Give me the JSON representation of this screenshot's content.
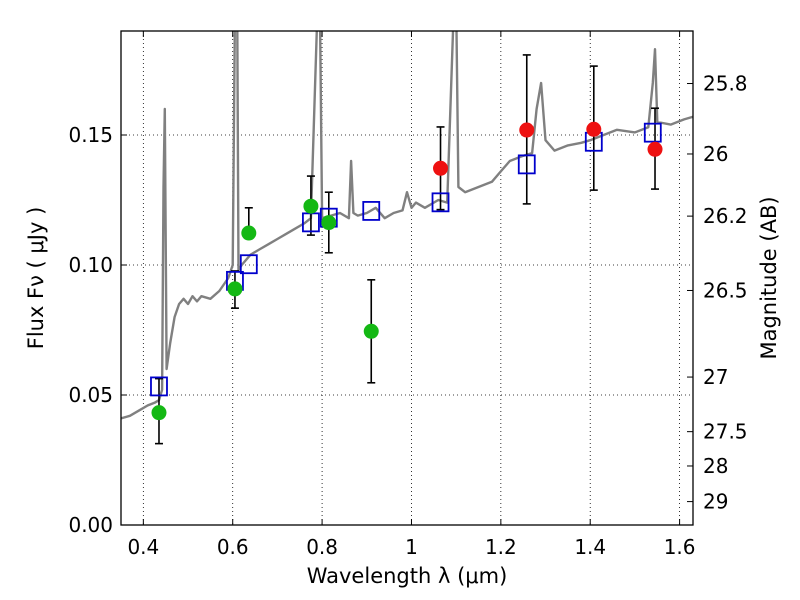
{
  "chart_data": {
    "type": "scatter",
    "title": "",
    "xlabel": "Wavelength  λ (μm)",
    "ylabel": "Flux  Fν  ( μJy )",
    "ylabel_right": "Magnitude (AB)",
    "xlim": [
      0.35,
      1.63
    ],
    "ylim": [
      0.0,
      0.19
    ],
    "grid": true,
    "x_ticks": [
      0.4,
      0.6,
      0.8,
      1.0,
      1.2,
      1.4,
      1.6
    ],
    "x_tick_labels": [
      "0.4",
      "0.6",
      "0.8",
      "1",
      "1.2",
      "1.4",
      "1.6"
    ],
    "y_ticks": [
      0.0,
      0.05,
      0.1,
      0.15
    ],
    "y_tick_labels": [
      "0.00",
      "0.05",
      "0.10",
      "0.15"
    ],
    "right_ticks": [
      {
        "label": "25.8",
        "flux": 0.1698
      },
      {
        "label": "26",
        "flux": 0.1427
      },
      {
        "label": "26.2",
        "flux": 0.1188
      },
      {
        "label": "26.5",
        "flux": 0.0902
      },
      {
        "label": "27",
        "flux": 0.0569
      },
      {
        "label": "27.5",
        "flux": 0.0359
      },
      {
        "label": "28",
        "flux": 0.0227
      },
      {
        "label": "29",
        "flux": 0.009
      }
    ],
    "colors": {
      "model": "#808080",
      "model_photometry": "#0000cc",
      "observed_optical": "#14b814",
      "observed_nir": "#ee1111",
      "errorbar": "#000000"
    },
    "series": [
      {
        "key": "model_sed",
        "type": "line",
        "x": [
          0.35,
          0.37,
          0.39,
          0.41,
          0.425,
          0.435,
          0.442,
          0.445,
          0.448,
          0.452,
          0.456,
          0.46,
          0.47,
          0.48,
          0.49,
          0.5,
          0.51,
          0.52,
          0.53,
          0.55,
          0.57,
          0.59,
          0.6,
          0.605,
          0.608,
          0.61,
          0.613,
          0.62,
          0.64,
          0.66,
          0.68,
          0.7,
          0.72,
          0.74,
          0.76,
          0.775,
          0.79,
          0.795,
          0.8,
          0.82,
          0.84,
          0.86,
          0.865,
          0.87,
          0.88,
          0.9,
          0.92,
          0.94,
          0.96,
          0.98,
          0.99,
          1.0,
          1.01,
          1.03,
          1.05,
          1.06,
          1.08,
          1.095,
          1.1,
          1.105,
          1.12,
          1.15,
          1.18,
          1.2,
          1.22,
          1.25,
          1.27,
          1.28,
          1.29,
          1.3,
          1.32,
          1.35,
          1.38,
          1.4,
          1.43,
          1.46,
          1.5,
          1.53,
          1.54,
          1.545,
          1.55,
          1.58,
          1.61,
          1.63
        ],
        "y": [
          0.041,
          0.042,
          0.044,
          0.046,
          0.047,
          0.048,
          0.052,
          0.13,
          0.16,
          0.06,
          0.065,
          0.07,
          0.08,
          0.085,
          0.087,
          0.085,
          0.088,
          0.086,
          0.088,
          0.087,
          0.09,
          0.095,
          0.1,
          0.2,
          0.2,
          0.2,
          0.098,
          0.1,
          0.104,
          0.106,
          0.108,
          0.11,
          0.112,
          0.114,
          0.116,
          0.118,
          0.2,
          0.2,
          0.118,
          0.119,
          0.12,
          0.118,
          0.14,
          0.12,
          0.119,
          0.12,
          0.122,
          0.118,
          0.12,
          0.121,
          0.128,
          0.122,
          0.124,
          0.122,
          0.124,
          0.125,
          0.124,
          0.2,
          0.2,
          0.13,
          0.128,
          0.13,
          0.132,
          0.136,
          0.14,
          0.142,
          0.143,
          0.16,
          0.17,
          0.148,
          0.144,
          0.146,
          0.147,
          0.148,
          0.15,
          0.152,
          0.151,
          0.153,
          0.17,
          0.183,
          0.155,
          0.154,
          0.156,
          0.157
        ]
      },
      {
        "key": "model_photometry",
        "type": "scatter",
        "marker": "open-square",
        "x": [
          0.435,
          0.605,
          0.636,
          0.775,
          0.815,
          0.91,
          1.065,
          1.258,
          1.408,
          1.54
        ],
        "y": [
          0.0533,
          0.0939,
          0.1003,
          0.1164,
          0.1182,
          0.1208,
          0.1241,
          0.1387,
          0.1474,
          0.1509
        ]
      },
      {
        "key": "observed_optical",
        "type": "scatter",
        "marker": "filled-circle",
        "x": [
          0.435,
          0.605,
          0.636,
          0.775,
          0.815,
          0.91
        ],
        "y": [
          0.0432,
          0.0908,
          0.1123,
          0.1226,
          0.1163,
          0.0745
        ],
        "yerr_low": [
          0.0313,
          0.0834,
          null,
          0.1115,
          0.1047,
          0.0547
        ],
        "yerr_high": [
          0.0563,
          0.0977,
          0.122,
          0.1342,
          0.128,
          0.0943
        ]
      },
      {
        "key": "observed_nir",
        "type": "scatter",
        "marker": "filled-circle",
        "x": [
          1.065,
          1.258,
          1.408,
          1.545
        ],
        "y": [
          0.1372,
          0.1519,
          0.1522,
          0.1445
        ],
        "yerr_low": [
          0.1213,
          0.1235,
          0.1288,
          0.1292
        ],
        "yerr_high": [
          0.1531,
          0.1808,
          0.1765,
          0.1603
        ]
      }
    ]
  }
}
